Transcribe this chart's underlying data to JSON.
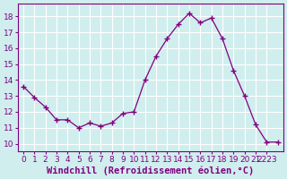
{
  "x": [
    0,
    1,
    2,
    3,
    4,
    5,
    6,
    7,
    8,
    9,
    10,
    11,
    12,
    13,
    14,
    15,
    16,
    17,
    18,
    19,
    20,
    21,
    22,
    23
  ],
  "y": [
    13.6,
    12.9,
    12.3,
    11.5,
    11.5,
    11.0,
    11.3,
    11.1,
    11.3,
    11.9,
    12.0,
    14.0,
    15.5,
    16.6,
    17.5,
    18.2,
    17.6,
    17.9,
    16.6,
    14.6,
    13.0,
    11.2,
    10.1,
    10.1
  ],
  "line_color": "#800080",
  "marker": "+",
  "marker_color": "#800080",
  "bg_color": "#d0eeee",
  "grid_color": "#ffffff",
  "xlabel": "Windchill (Refroidissement éolien,°C)",
  "xlabel_color": "#800080",
  "tick_color": "#800080",
  "xlim": [
    -0.5,
    23.5
  ],
  "ylim": [
    9.5,
    18.8
  ],
  "yticks": [
    10,
    11,
    12,
    13,
    14,
    15,
    16,
    17,
    18
  ],
  "xtick_positions": [
    0,
    1,
    2,
    3,
    4,
    5,
    6,
    7,
    8,
    9,
    10,
    11,
    12,
    13,
    14,
    15,
    16,
    17,
    18,
    19,
    20,
    21,
    22
  ],
  "xtick_labels": [
    "0",
    "1",
    "2",
    "3",
    "4",
    "5",
    "6",
    "7",
    "8",
    "9",
    "10",
    "11",
    "12",
    "13",
    "14",
    "15",
    "16",
    "17",
    "18",
    "19",
    "20",
    "21",
    "2223"
  ],
  "tick_fontsize": 6.5,
  "xlabel_fontsize": 7.5
}
